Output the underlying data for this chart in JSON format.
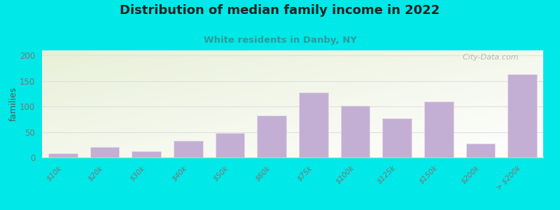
{
  "title": "Distribution of median family income in 2022",
  "subtitle": "White residents in Danby, NY",
  "categories": [
    "$10k",
    "$20k",
    "$30k",
    "$40k",
    "$50k",
    "$60k",
    "$75k",
    "$100k",
    "$125k",
    "$150k",
    "$200k",
    "> $200k"
  ],
  "values": [
    8,
    20,
    13,
    33,
    48,
    82,
    128,
    102,
    77,
    110,
    28,
    163
  ],
  "bar_color": "#c4afd4",
  "bar_edge_color": "#e8ddf0",
  "background_outer": "#00e8e8",
  "title_color": "#222222",
  "subtitle_color": "#339999",
  "ylabel": "families",
  "ylabel_color": "#555555",
  "tick_color": "#777777",
  "grid_color": "#e0e0e0",
  "ylim": [
    0,
    210
  ],
  "yticks": [
    0,
    50,
    100,
    150,
    200
  ],
  "watermark": "  City-Data.com",
  "watermark_color": "#aaaaaa",
  "bg_color_top": "#e8f0d8",
  "bg_color_bottom": "#f8fdf4"
}
